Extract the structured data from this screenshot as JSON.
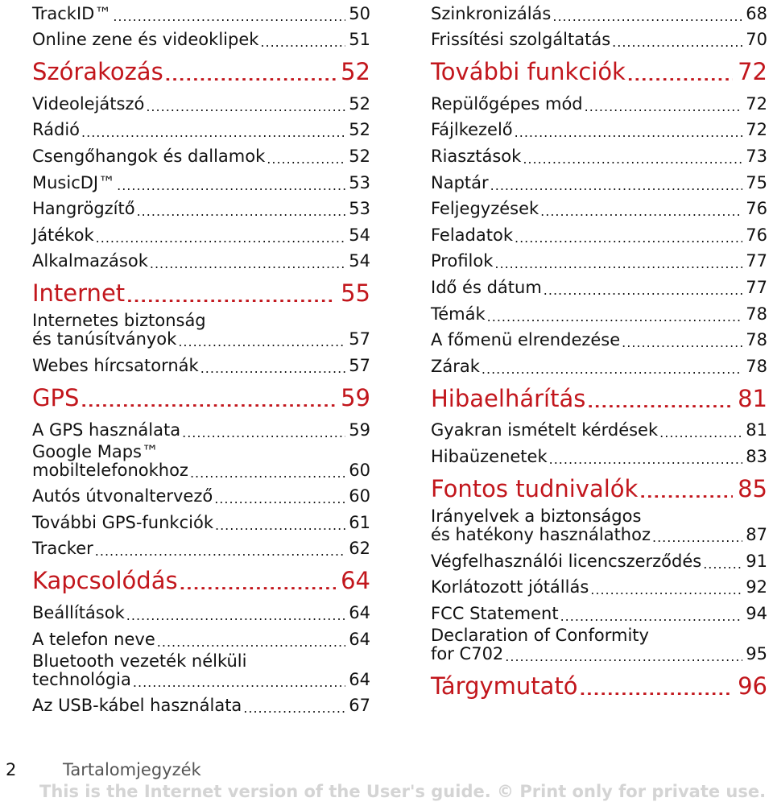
{
  "left_column": [
    {
      "type": "entry",
      "label": "TrackID™",
      "page": "50"
    },
    {
      "type": "entry",
      "label": "Online zene és videoklipek",
      "page": "51"
    },
    {
      "type": "section",
      "label": "Szórakozás",
      "page": "52"
    },
    {
      "type": "entry",
      "label": "Videolejátszó",
      "page": "52"
    },
    {
      "type": "entry",
      "label": "Rádió",
      "page": "52"
    },
    {
      "type": "entry",
      "label": "Csengőhangok és dallamok",
      "page": "52"
    },
    {
      "type": "entry",
      "label": "MusicDJ™",
      "page": "53"
    },
    {
      "type": "entry",
      "label": "Hangrögzítő",
      "page": "53"
    },
    {
      "type": "entry",
      "label": "Játékok",
      "page": "54"
    },
    {
      "type": "entry",
      "label": "Alkalmazások",
      "page": "54"
    },
    {
      "type": "section",
      "label": "Internet",
      "page": "55"
    },
    {
      "type": "entry",
      "line1": "Internetes biztonság",
      "label": "és tanúsítványok",
      "page": "57"
    },
    {
      "type": "entry",
      "label": "Webes hírcsatornák",
      "page": "57"
    },
    {
      "type": "section",
      "label": "GPS",
      "page": "59"
    },
    {
      "type": "entry",
      "label": "A GPS használata",
      "page": "59"
    },
    {
      "type": "entry",
      "line1": "Google Maps™",
      "label": "mobiltelefonokhoz",
      "page": "60"
    },
    {
      "type": "entry",
      "label": "Autós útvonaltervező",
      "page": "60"
    },
    {
      "type": "entry",
      "label": "További GPS-funkciók",
      "page": "61"
    },
    {
      "type": "entry",
      "label": "Tracker",
      "page": "62"
    },
    {
      "type": "section",
      "label": "Kapcsolódás",
      "page": "64"
    },
    {
      "type": "entry",
      "label": "Beállítások",
      "page": "64"
    },
    {
      "type": "entry",
      "label": "A telefon neve",
      "page": "64"
    },
    {
      "type": "entry",
      "line1": "Bluetooth vezeték nélküli",
      "label": "technológia",
      "page": "64"
    },
    {
      "type": "entry",
      "label": "Az USB-kábel használata",
      "page": "67"
    }
  ],
  "right_column": [
    {
      "type": "entry",
      "label": "Szinkronizálás",
      "page": "68"
    },
    {
      "type": "entry",
      "label": "Frissítési szolgáltatás",
      "page": "70"
    },
    {
      "type": "section",
      "label": "További funkciók",
      "page": "72"
    },
    {
      "type": "entry",
      "label": "Repülőgépes mód",
      "page": "72"
    },
    {
      "type": "entry",
      "label": "Fájlkezelő",
      "page": "72"
    },
    {
      "type": "entry",
      "label": "Riasztások",
      "page": "73"
    },
    {
      "type": "entry",
      "label": "Naptár",
      "page": "75"
    },
    {
      "type": "entry",
      "label": "Feljegyzések",
      "page": "76"
    },
    {
      "type": "entry",
      "label": "Feladatok",
      "page": "76"
    },
    {
      "type": "entry",
      "label": "Profilok",
      "page": "77"
    },
    {
      "type": "entry",
      "label": "Idő és dátum",
      "page": "77"
    },
    {
      "type": "entry",
      "label": "Témák",
      "page": "78"
    },
    {
      "type": "entry",
      "label": "A főmenü elrendezése",
      "page": "78"
    },
    {
      "type": "entry",
      "label": "Zárak",
      "page": "78"
    },
    {
      "type": "section",
      "label": "Hibaelhárítás",
      "page": "81"
    },
    {
      "type": "entry",
      "label": "Gyakran ismételt kérdések",
      "page": "81"
    },
    {
      "type": "entry",
      "label": "Hibaüzenetek",
      "page": "83"
    },
    {
      "type": "section",
      "label": "Fontos tudnivalók",
      "page": "85"
    },
    {
      "type": "entry",
      "line1": "Irányelvek a biztonságos",
      "label": "és hatékony használathoz",
      "page": "87"
    },
    {
      "type": "entry",
      "label": "Végfelhasználói licencszerződés",
      "page": "91"
    },
    {
      "type": "entry",
      "label": "Korlátozott jótállás",
      "page": "92"
    },
    {
      "type": "entry",
      "label": "FCC Statement",
      "page": "94"
    },
    {
      "type": "entry",
      "line1": "Declaration of Conformity",
      "label": "for C702",
      "page": "95"
    },
    {
      "type": "section",
      "label": "Tárgymutató",
      "page": "96"
    }
  ],
  "footer": {
    "page_number": "2",
    "title": "Tartalomjegyzék",
    "watermark": "This is the Internet version of the User's guide. © Print only for private use."
  },
  "colors": {
    "section_heading": "#c2161c",
    "watermark": "#d4d4d4"
  }
}
